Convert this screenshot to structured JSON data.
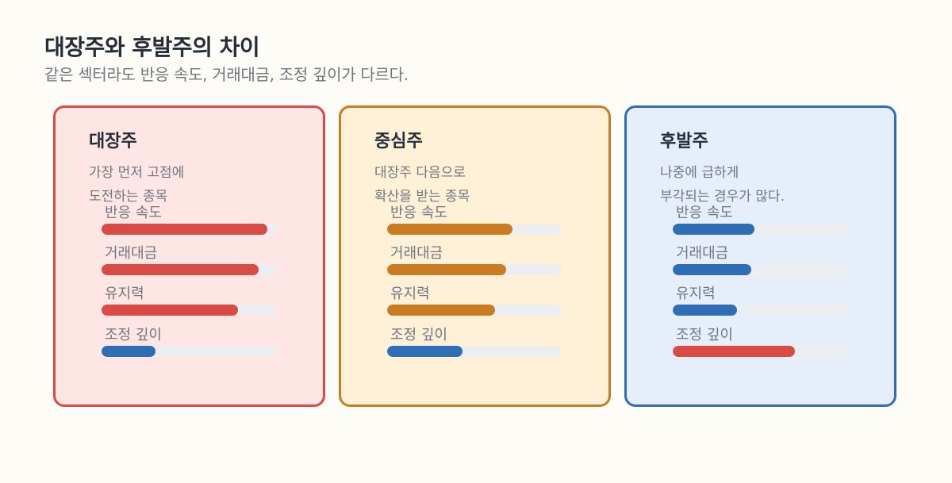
{
  "header": {
    "title": "대장주와 후발주의 차이",
    "subtitle": "같은 섹터라도 반응 속도, 거래대금, 조정 깊이가 다르다."
  },
  "colors": {
    "red": "#d94b45",
    "orange": "#c97c22",
    "blue": "#2f6db5",
    "red_bg": "#fde6e4",
    "orange_bg": "#fff0d8",
    "blue_bg": "#e5eef9"
  },
  "cards": [
    {
      "name": "대장주",
      "desc": "가장 먼저 고점에\n도전하는 종목",
      "border": "#d94b45",
      "bg": "#fde6e4",
      "metrics": [
        {
          "label": "반응 속도",
          "value": 0.95,
          "color": "#d94b45"
        },
        {
          "label": "거래대금",
          "value": 0.9,
          "color": "#d94b45"
        },
        {
          "label": "유지력",
          "value": 0.78,
          "color": "#d94b45"
        },
        {
          "label": "조정 깊이",
          "value": 0.31,
          "color": "#2f6db5"
        }
      ]
    },
    {
      "name": "중심주",
      "desc": "대장주 다음으로\n확산을 받는 종목",
      "border": "#c97c22",
      "bg": "#fff0d8",
      "metrics": [
        {
          "label": "반응 속도",
          "value": 0.72,
          "color": "#c97c22"
        },
        {
          "label": "거래대금",
          "value": 0.68,
          "color": "#c97c22"
        },
        {
          "label": "유지력",
          "value": 0.62,
          "color": "#c97c22"
        },
        {
          "label": "조정 깊이",
          "value": 0.43,
          "color": "#2f6db5"
        }
      ]
    },
    {
      "name": "후발주",
      "desc": "나중에 급하게\n부각되는 경우가 많다.",
      "border": "#2f6db5",
      "bg": "#e5eef9",
      "metrics": [
        {
          "label": "반응 속도",
          "value": 0.47,
          "color": "#2f6db5"
        },
        {
          "label": "거래대금",
          "value": 0.45,
          "color": "#2f6db5"
        },
        {
          "label": "유지력",
          "value": 0.37,
          "color": "#2f6db5"
        },
        {
          "label": "조정 깊이",
          "value": 0.7,
          "color": "#d94b45"
        }
      ]
    }
  ]
}
